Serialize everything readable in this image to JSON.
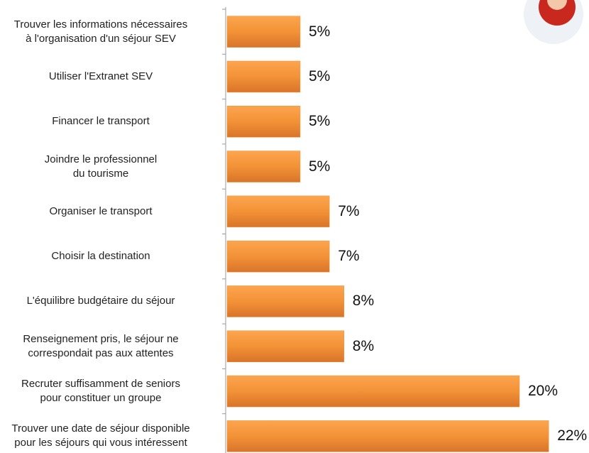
{
  "chart_data": {
    "type": "bar",
    "orientation": "horizontal",
    "categories": [
      "Trouver les informations nécessaires\nà l'organisation d'un séjour SEV",
      "Utiliser l'Extranet SEV",
      "Financer le transport",
      "Joindre le professionnel\ndu tourisme",
      "Organiser le transport",
      "Choisir la destination",
      "L'équilibre budgétaire du séjour",
      "Renseignement pris, le séjour ne\ncorrespondait pas aux attentes",
      "Recruter suffisamment de seniors\npour constituer un groupe",
      "Trouver une date de séjour disponible\npour les séjours qui vous intéressent"
    ],
    "values": [
      5,
      5,
      5,
      5,
      7,
      7,
      8,
      8,
      20,
      22
    ],
    "value_labels": [
      "5%",
      "5%",
      "5%",
      "5%",
      "7%",
      "7%",
      "8%",
      "8%",
      "20%",
      "22%"
    ],
    "color": "#f39237",
    "xlim": [
      0,
      25
    ]
  }
}
